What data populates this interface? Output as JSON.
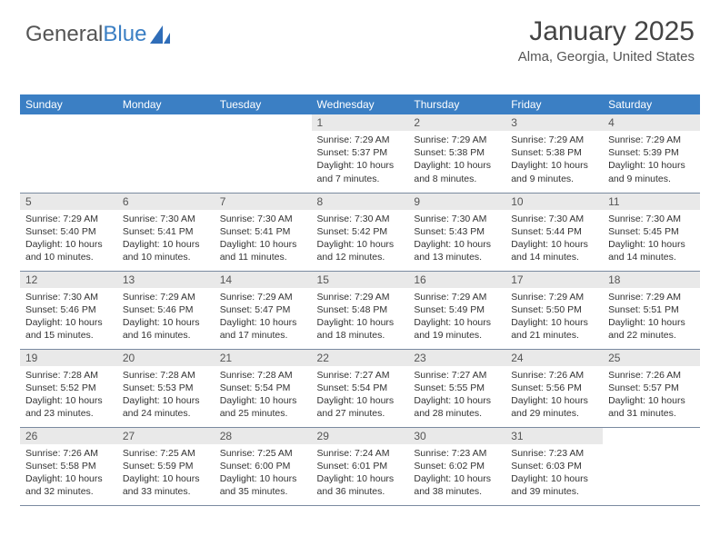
{
  "logo": {
    "text1": "General",
    "text2": "Blue"
  },
  "header": {
    "month": "January 2025",
    "location": "Alma, Georgia, United States"
  },
  "colors": {
    "header_bg": "#3b7fc4",
    "header_fg": "#ffffff",
    "daynum_bg": "#e9e9e9",
    "row_border": "#7a8aa0",
    "text": "#333333"
  },
  "days_of_week": [
    "Sunday",
    "Monday",
    "Tuesday",
    "Wednesday",
    "Thursday",
    "Friday",
    "Saturday"
  ],
  "weeks": [
    [
      {
        "num": "",
        "sunrise": "",
        "sunset": "",
        "daylight": "",
        "empty": true
      },
      {
        "num": "",
        "sunrise": "",
        "sunset": "",
        "daylight": "",
        "empty": true
      },
      {
        "num": "",
        "sunrise": "",
        "sunset": "",
        "daylight": "",
        "empty": true
      },
      {
        "num": "1",
        "sunrise": "Sunrise: 7:29 AM",
        "sunset": "Sunset: 5:37 PM",
        "daylight": "Daylight: 10 hours and 7 minutes."
      },
      {
        "num": "2",
        "sunrise": "Sunrise: 7:29 AM",
        "sunset": "Sunset: 5:38 PM",
        "daylight": "Daylight: 10 hours and 8 minutes."
      },
      {
        "num": "3",
        "sunrise": "Sunrise: 7:29 AM",
        "sunset": "Sunset: 5:38 PM",
        "daylight": "Daylight: 10 hours and 9 minutes."
      },
      {
        "num": "4",
        "sunrise": "Sunrise: 7:29 AM",
        "sunset": "Sunset: 5:39 PM",
        "daylight": "Daylight: 10 hours and 9 minutes."
      }
    ],
    [
      {
        "num": "5",
        "sunrise": "Sunrise: 7:29 AM",
        "sunset": "Sunset: 5:40 PM",
        "daylight": "Daylight: 10 hours and 10 minutes."
      },
      {
        "num": "6",
        "sunrise": "Sunrise: 7:30 AM",
        "sunset": "Sunset: 5:41 PM",
        "daylight": "Daylight: 10 hours and 10 minutes."
      },
      {
        "num": "7",
        "sunrise": "Sunrise: 7:30 AM",
        "sunset": "Sunset: 5:41 PM",
        "daylight": "Daylight: 10 hours and 11 minutes."
      },
      {
        "num": "8",
        "sunrise": "Sunrise: 7:30 AM",
        "sunset": "Sunset: 5:42 PM",
        "daylight": "Daylight: 10 hours and 12 minutes."
      },
      {
        "num": "9",
        "sunrise": "Sunrise: 7:30 AM",
        "sunset": "Sunset: 5:43 PM",
        "daylight": "Daylight: 10 hours and 13 minutes."
      },
      {
        "num": "10",
        "sunrise": "Sunrise: 7:30 AM",
        "sunset": "Sunset: 5:44 PM",
        "daylight": "Daylight: 10 hours and 14 minutes."
      },
      {
        "num": "11",
        "sunrise": "Sunrise: 7:30 AM",
        "sunset": "Sunset: 5:45 PM",
        "daylight": "Daylight: 10 hours and 14 minutes."
      }
    ],
    [
      {
        "num": "12",
        "sunrise": "Sunrise: 7:30 AM",
        "sunset": "Sunset: 5:46 PM",
        "daylight": "Daylight: 10 hours and 15 minutes."
      },
      {
        "num": "13",
        "sunrise": "Sunrise: 7:29 AM",
        "sunset": "Sunset: 5:46 PM",
        "daylight": "Daylight: 10 hours and 16 minutes."
      },
      {
        "num": "14",
        "sunrise": "Sunrise: 7:29 AM",
        "sunset": "Sunset: 5:47 PM",
        "daylight": "Daylight: 10 hours and 17 minutes."
      },
      {
        "num": "15",
        "sunrise": "Sunrise: 7:29 AM",
        "sunset": "Sunset: 5:48 PM",
        "daylight": "Daylight: 10 hours and 18 minutes."
      },
      {
        "num": "16",
        "sunrise": "Sunrise: 7:29 AM",
        "sunset": "Sunset: 5:49 PM",
        "daylight": "Daylight: 10 hours and 19 minutes."
      },
      {
        "num": "17",
        "sunrise": "Sunrise: 7:29 AM",
        "sunset": "Sunset: 5:50 PM",
        "daylight": "Daylight: 10 hours and 21 minutes."
      },
      {
        "num": "18",
        "sunrise": "Sunrise: 7:29 AM",
        "sunset": "Sunset: 5:51 PM",
        "daylight": "Daylight: 10 hours and 22 minutes."
      }
    ],
    [
      {
        "num": "19",
        "sunrise": "Sunrise: 7:28 AM",
        "sunset": "Sunset: 5:52 PM",
        "daylight": "Daylight: 10 hours and 23 minutes."
      },
      {
        "num": "20",
        "sunrise": "Sunrise: 7:28 AM",
        "sunset": "Sunset: 5:53 PM",
        "daylight": "Daylight: 10 hours and 24 minutes."
      },
      {
        "num": "21",
        "sunrise": "Sunrise: 7:28 AM",
        "sunset": "Sunset: 5:54 PM",
        "daylight": "Daylight: 10 hours and 25 minutes."
      },
      {
        "num": "22",
        "sunrise": "Sunrise: 7:27 AM",
        "sunset": "Sunset: 5:54 PM",
        "daylight": "Daylight: 10 hours and 27 minutes."
      },
      {
        "num": "23",
        "sunrise": "Sunrise: 7:27 AM",
        "sunset": "Sunset: 5:55 PM",
        "daylight": "Daylight: 10 hours and 28 minutes."
      },
      {
        "num": "24",
        "sunrise": "Sunrise: 7:26 AM",
        "sunset": "Sunset: 5:56 PM",
        "daylight": "Daylight: 10 hours and 29 minutes."
      },
      {
        "num": "25",
        "sunrise": "Sunrise: 7:26 AM",
        "sunset": "Sunset: 5:57 PM",
        "daylight": "Daylight: 10 hours and 31 minutes."
      }
    ],
    [
      {
        "num": "26",
        "sunrise": "Sunrise: 7:26 AM",
        "sunset": "Sunset: 5:58 PM",
        "daylight": "Daylight: 10 hours and 32 minutes."
      },
      {
        "num": "27",
        "sunrise": "Sunrise: 7:25 AM",
        "sunset": "Sunset: 5:59 PM",
        "daylight": "Daylight: 10 hours and 33 minutes."
      },
      {
        "num": "28",
        "sunrise": "Sunrise: 7:25 AM",
        "sunset": "Sunset: 6:00 PM",
        "daylight": "Daylight: 10 hours and 35 minutes."
      },
      {
        "num": "29",
        "sunrise": "Sunrise: 7:24 AM",
        "sunset": "Sunset: 6:01 PM",
        "daylight": "Daylight: 10 hours and 36 minutes."
      },
      {
        "num": "30",
        "sunrise": "Sunrise: 7:23 AM",
        "sunset": "Sunset: 6:02 PM",
        "daylight": "Daylight: 10 hours and 38 minutes."
      },
      {
        "num": "31",
        "sunrise": "Sunrise: 7:23 AM",
        "sunset": "Sunset: 6:03 PM",
        "daylight": "Daylight: 10 hours and 39 minutes."
      },
      {
        "num": "",
        "sunrise": "",
        "sunset": "",
        "daylight": "",
        "empty": true
      }
    ]
  ]
}
